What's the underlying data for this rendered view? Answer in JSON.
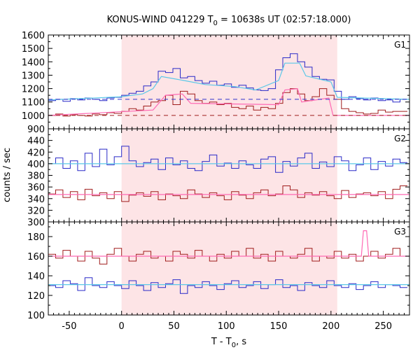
{
  "chart_data": {
    "type": "line",
    "title": {
      "prefix": "KONUS-WIND 041229 T",
      "sub": "0",
      "suffix": " = 10638s UT (02:57:18.000)"
    },
    "xlabel": {
      "prefix": "T - T",
      "sub": "0",
      "suffix": ", s"
    },
    "ylabel": "counts / sec",
    "xlim": [
      -70,
      275
    ],
    "xticks": [
      -50,
      0,
      50,
      100,
      150,
      200,
      250
    ],
    "x_tick_labels": [
      "-50",
      "0",
      "50",
      "100",
      "150",
      "200",
      "250"
    ],
    "highlight_interval": [
      0,
      206
    ],
    "grid": false,
    "panels": [
      {
        "label": "G1",
        "ylim": [
          900,
          1600
        ],
        "yticks": [
          900,
          1000,
          1100,
          1200,
          1300,
          1400,
          1500,
          1600
        ],
        "y_tick_labels": [
          "900",
          "1000",
          "1100",
          "1200",
          "1300",
          "1400",
          "1500",
          "1600"
        ],
        "series": [
          {
            "role": "blue-histogram",
            "color": "#2a2ac8",
            "x": [
              -70,
              -63,
              -56,
              -49,
              -42,
              -35,
              -28,
              -21,
              -14,
              -7,
              0,
              7,
              14,
              21,
              28,
              35,
              42,
              49,
              56,
              63,
              70,
              77,
              84,
              91,
              98,
              105,
              112,
              119,
              126,
              133,
              140,
              147,
              154,
              161,
              168,
              175,
              182,
              189,
              196,
              203,
              210,
              217,
              224,
              231,
              238,
              245,
              252,
              259,
              266
            ],
            "y": [
              1110,
              1120,
              1105,
              1125,
              1115,
              1130,
              1120,
              1110,
              1130,
              1135,
              1150,
              1165,
              1180,
              1220,
              1250,
              1330,
              1320,
              1350,
              1280,
              1290,
              1260,
              1240,
              1255,
              1225,
              1235,
              1210,
              1225,
              1205,
              1190,
              1185,
              1200,
              1340,
              1430,
              1460,
              1400,
              1360,
              1290,
              1270,
              1265,
              1180,
              1120,
              1140,
              1125,
              1115,
              1130,
              1110,
              1115,
              1100,
              1120
            ]
          },
          {
            "role": "blue-fit",
            "color": "#5bc8e8",
            "x": [
              -70,
              -2,
              20,
              30,
              38,
              60,
              80,
              108,
              128,
              150,
              156,
              170,
              176,
              200,
              206,
              275
            ],
            "y": [
              1115,
              1138,
              1160,
              1200,
              1290,
              1260,
              1230,
              1215,
              1190,
              1260,
              1390,
              1390,
              1295,
              1250,
              1135,
              1120
            ]
          },
          {
            "role": "red-histogram",
            "color": "#a01c1c",
            "x": [
              -70,
              -63,
              -56,
              -49,
              -42,
              -35,
              -28,
              -21,
              -14,
              -7,
              0,
              7,
              14,
              21,
              28,
              35,
              42,
              49,
              56,
              63,
              70,
              77,
              84,
              91,
              98,
              105,
              112,
              119,
              126,
              133,
              140,
              147,
              154,
              161,
              168,
              175,
              182,
              189,
              196,
              203,
              210,
              217,
              224,
              231,
              238,
              245,
              252,
              259,
              266
            ],
            "y": [
              1000,
              1010,
              995,
              1005,
              1000,
              995,
              1010,
              1005,
              1020,
              1015,
              1030,
              1050,
              1040,
              1070,
              1100,
              1110,
              1150,
              1080,
              1180,
              1160,
              1110,
              1090,
              1100,
              1080,
              1090,
              1060,
              1050,
              1070,
              1040,
              1060,
              1050,
              1090,
              1170,
              1200,
              1160,
              1110,
              1140,
              1200,
              1150,
              1120,
              1050,
              1030,
              1020,
              1010,
              1015,
              1040,
              1025,
              1030,
              1030
            ]
          },
          {
            "role": "red-fit",
            "color": "#ff69b4",
            "x": [
              -70,
              30,
              42,
              58,
              66,
              150,
              156,
              168,
              172,
              198,
              202,
              275
            ],
            "y": [
              1000,
              1040,
              1150,
              1160,
              1090,
              1080,
              1190,
              1200,
              1100,
              1130,
              1000,
              1000
            ]
          },
          {
            "role": "blue-background",
            "color": "#3333cc",
            "dashed": true,
            "x": [
              -70,
              275
            ],
            "y": [
              1120,
              1120
            ]
          },
          {
            "role": "red-background",
            "color": "#a01c1c",
            "dashed": true,
            "x": [
              -70,
              275
            ],
            "y": [
              1000,
              1000
            ]
          }
        ]
      },
      {
        "label": "G2",
        "ylim": [
          300,
          460
        ],
        "yticks": [
          300,
          320,
          340,
          360,
          380,
          400,
          420,
          440
        ],
        "y_tick_labels": [
          "300",
          "320",
          "340",
          "360",
          "380",
          "400",
          "420",
          "440"
        ],
        "series": [
          {
            "role": "blue-histogram",
            "color": "#2a2ac8",
            "x": [
              -70,
              -63,
              -56,
              -49,
              -42,
              -35,
              -28,
              -21,
              -14,
              -7,
              0,
              7,
              14,
              21,
              28,
              35,
              42,
              49,
              56,
              63,
              70,
              77,
              84,
              91,
              98,
              105,
              112,
              119,
              126,
              133,
              140,
              147,
              154,
              161,
              168,
              175,
              182,
              189,
              196,
              203,
              210,
              217,
              224,
              231,
              238,
              245,
              252,
              259,
              266
            ],
            "y": [
              400,
              410,
              392,
              405,
              388,
              418,
              395,
              425,
              398,
              412,
              430,
              405,
              395,
              402,
              408,
              390,
              410,
              398,
              405,
              392,
              388,
              404,
              415,
              396,
              401,
              392,
              405,
              398,
              392,
              408,
              412,
              385,
              404,
              396,
              410,
              418,
              392,
              403,
              395,
              412,
              405,
              388,
              398,
              410,
              390,
              404,
              396,
              408,
              402
            ]
          },
          {
            "role": "blue-fit",
            "color": "#5bc8e8",
            "x": [
              -70,
              275
            ],
            "y": [
              400,
              400
            ]
          },
          {
            "role": "red-histogram",
            "color": "#a01c1c",
            "x": [
              -70,
              -63,
              -56,
              -49,
              -42,
              -35,
              -28,
              -21,
              -14,
              -7,
              0,
              7,
              14,
              21,
              28,
              35,
              42,
              49,
              56,
              63,
              70,
              77,
              84,
              91,
              98,
              105,
              112,
              119,
              126,
              133,
              140,
              147,
              154,
              161,
              168,
              175,
              182,
              189,
              196,
              203,
              210,
              217,
              224,
              231,
              238,
              245,
              252,
              259,
              266
            ],
            "y": [
              348,
              355,
              342,
              352,
              338,
              356,
              345,
              350,
              340,
              352,
              335,
              346,
              350,
              344,
              352,
              338,
              348,
              345,
              340,
              355,
              348,
              342,
              350,
              345,
              338,
              352,
              346,
              340,
              350,
              355,
              345,
              348,
              362,
              355,
              342,
              350,
              346,
              352,
              345,
              340,
              354,
              342,
              348,
              350,
              345,
              352,
              340,
              356,
              362
            ]
          },
          {
            "role": "red-fit",
            "color": "#ff69b4",
            "x": [
              -70,
              275
            ],
            "y": [
              347,
              347
            ]
          }
        ]
      },
      {
        "label": "G3",
        "ylim": [
          100,
          195
        ],
        "yticks": [
          100,
          120,
          140,
          160,
          180
        ],
        "y_tick_labels": [
          "100",
          "120",
          "140",
          "160",
          "180"
        ],
        "series": [
          {
            "role": "red-histogram",
            "color": "#a01c1c",
            "x": [
              -70,
              -63,
              -56,
              -49,
              -42,
              -35,
              -28,
              -21,
              -14,
              -7,
              0,
              7,
              14,
              21,
              28,
              35,
              42,
              49,
              56,
              63,
              70,
              77,
              84,
              91,
              98,
              105,
              112,
              119,
              126,
              133,
              140,
              147,
              154,
              161,
              168,
              175,
              182,
              189,
              196,
              203,
              210,
              217,
              224,
              231,
              238,
              245,
              252,
              259,
              266
            ],
            "y": [
              162,
              158,
              166,
              160,
              155,
              165,
              158,
              152,
              162,
              168,
              160,
              155,
              162,
              165,
              158,
              160,
              155,
              165,
              162,
              158,
              166,
              160,
              155,
              162,
              158,
              165,
              160,
              168,
              158,
              162,
              155,
              165,
              160,
              158,
              162,
              168,
              155,
              160,
              158,
              165,
              158,
              162,
              155,
              160,
              165,
              158,
              162,
              168,
              160
            ]
          },
          {
            "role": "red-fit",
            "color": "#ff69b4",
            "x": [
              -70,
              229,
              231,
              234,
              236,
              275
            ],
            "y": [
              160,
              160,
              186,
              186,
              160,
              160
            ]
          },
          {
            "role": "blue-histogram",
            "color": "#2a2ac8",
            "x": [
              -70,
              -63,
              -56,
              -49,
              -42,
              -35,
              -28,
              -21,
              -14,
              -7,
              0,
              7,
              14,
              21,
              28,
              35,
              42,
              49,
              56,
              63,
              70,
              77,
              84,
              91,
              98,
              105,
              112,
              119,
              126,
              133,
              140,
              147,
              154,
              161,
              168,
              175,
              182,
              189,
              196,
              203,
              210,
              217,
              224,
              231,
              238,
              245,
              252,
              259,
              266
            ],
            "y": [
              130,
              128,
              135,
              132,
              125,
              138,
              130,
              128,
              134,
              130,
              127,
              135,
              130,
              125,
              133,
              128,
              132,
              136,
              122,
              130,
              128,
              134,
              130,
              126,
              132,
              135,
              128,
              130,
              134,
              127,
              131,
              136,
              128,
              130,
              125,
              133,
              130,
              128,
              135,
              130,
              128,
              132,
              126,
              130,
              134,
              128,
              131,
              130,
              128
            ]
          },
          {
            "role": "blue-fit",
            "color": "#5bc8e8",
            "x": [
              -70,
              275
            ],
            "y": [
              131,
              131
            ]
          }
        ]
      }
    ]
  }
}
